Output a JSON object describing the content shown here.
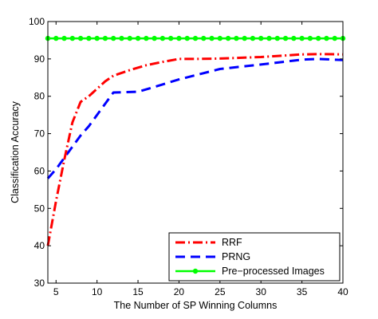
{
  "chart_data": {
    "type": "line",
    "xlabel": "The Number of SP Winning Columns",
    "ylabel": "Classification Accuracy",
    "xlim": [
      4,
      40
    ],
    "ylim": [
      30,
      100
    ],
    "xticks": [
      5,
      10,
      15,
      20,
      25,
      30,
      35,
      40
    ],
    "yticks": [
      30,
      40,
      50,
      60,
      70,
      80,
      90,
      100
    ],
    "grid": false,
    "legend_position": "bottom-right",
    "series": [
      {
        "name": "RRF",
        "color": "#ff0000",
        "line_style": "dash-dot",
        "x": [
          4,
          5,
          6,
          7,
          8,
          9,
          10,
          11,
          12,
          14,
          16,
          18,
          20,
          22,
          25,
          30,
          35,
          37,
          40
        ],
        "y": [
          40,
          52,
          63,
          73,
          78.5,
          80,
          82,
          84,
          85.5,
          87,
          88.3,
          89.2,
          90,
          90,
          90.1,
          90.5,
          91.2,
          91.3,
          91.2
        ]
      },
      {
        "name": "PRNG",
        "color": "#0000ff",
        "line_style": "dashed",
        "x": [
          4,
          5,
          6,
          7,
          8,
          9,
          10,
          11,
          12,
          15,
          17,
          20,
          25,
          30,
          35,
          37,
          40
        ],
        "y": [
          58,
          60.5,
          63.5,
          66.5,
          69.5,
          72,
          75,
          78,
          81,
          81.2,
          82.5,
          84.5,
          87.3,
          88.5,
          89.8,
          90,
          89.7
        ]
      },
      {
        "name": "Pre−processed Images",
        "color": "#00ff00",
        "line_style": "solid",
        "marker": "circle",
        "x": [
          4,
          5,
          6,
          7,
          8,
          9,
          10,
          11,
          12,
          13,
          14,
          15,
          16,
          17,
          18,
          19,
          20,
          21,
          22,
          23,
          24,
          25,
          26,
          27,
          28,
          29,
          30,
          31,
          32,
          33,
          34,
          35,
          36,
          37,
          38,
          39,
          40
        ],
        "y": [
          95.5,
          95.5,
          95.5,
          95.5,
          95.5,
          95.5,
          95.5,
          95.5,
          95.5,
          95.5,
          95.5,
          95.5,
          95.5,
          95.5,
          95.5,
          95.5,
          95.5,
          95.5,
          95.5,
          95.5,
          95.5,
          95.5,
          95.5,
          95.5,
          95.5,
          95.5,
          95.5,
          95.5,
          95.5,
          95.5,
          95.5,
          95.5,
          95.5,
          95.5,
          95.5,
          95.5,
          95.5
        ]
      }
    ]
  }
}
